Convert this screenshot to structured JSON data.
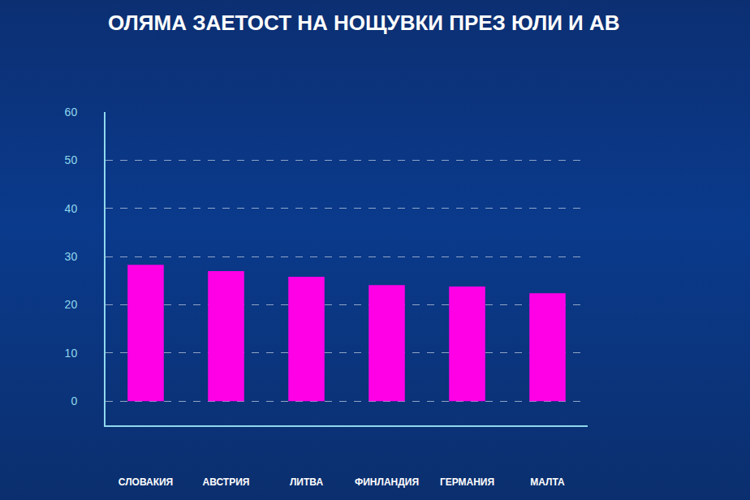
{
  "chart_data": {
    "type": "bar",
    "title": "ОЛЯМА ЗАЕТОСТ НА НОЩУВКИ ПРЕЗ ЮЛИ И АВ",
    "categories": [
      "СЛОВАКИЯ",
      "АВСТРИЯ",
      "ЛИТВА",
      "ФИНЛАНДИЯ",
      "ГЕРМАНИЯ",
      "МАЛТА"
    ],
    "values": [
      28.3,
      27,
      25.8,
      24.1,
      23.8,
      22.4
    ],
    "color": "#ff00e6",
    "ylim": [
      -5,
      60
    ],
    "yticks": [
      0,
      10,
      20,
      30,
      40,
      50,
      60
    ],
    "grid": true
  }
}
